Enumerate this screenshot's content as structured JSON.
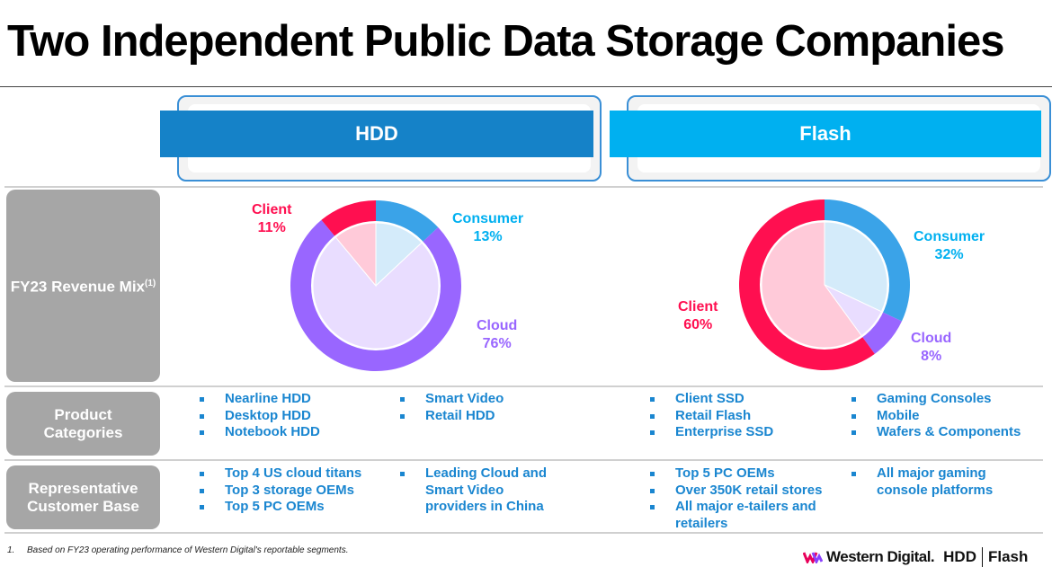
{
  "title": "Two Independent Public Data Storage Companies",
  "columns": [
    {
      "header": "HDD",
      "color": "#1582c8"
    },
    {
      "header": "Flash",
      "color": "#00b0f0"
    }
  ],
  "row_labels": {
    "revenue_mix": "FY23 Revenue Mix",
    "revenue_mix_sup": "(1)",
    "product_categories": "Product Categories",
    "customer_base": "Representative Customer Base"
  },
  "chart_data": [
    {
      "type": "pie",
      "title": "HDD",
      "slices": [
        {
          "name": "Consumer",
          "value": 13,
          "label": "13%",
          "color": "#3aa3e8",
          "text_color": "#00b0f0"
        },
        {
          "name": "Cloud",
          "value": 76,
          "label": "76%",
          "color": "#9966ff",
          "text_color": "#9966ff"
        },
        {
          "name": "Client",
          "value": 11,
          "label": "11%",
          "color": "#ff0f50",
          "text_color": "#ff0f50"
        }
      ]
    },
    {
      "type": "pie",
      "title": "Flash",
      "slices": [
        {
          "name": "Consumer",
          "value": 32,
          "label": "32%",
          "color": "#3aa3e8",
          "text_color": "#00b0f0"
        },
        {
          "name": "Cloud",
          "value": 8,
          "label": "8%",
          "color": "#9966ff",
          "text_color": "#9966ff"
        },
        {
          "name": "Client",
          "value": 60,
          "label": "60%",
          "color": "#ff0f50",
          "text_color": "#ff0f50"
        }
      ]
    }
  ],
  "hdd": {
    "products_col1": [
      "Nearline HDD",
      "Desktop HDD",
      "Notebook HDD"
    ],
    "products_col2": [
      "Smart Video",
      "Retail HDD"
    ],
    "customers_col1": [
      "Top 4 US cloud titans",
      "Top 3 storage OEMs",
      "Top 5 PC OEMs"
    ],
    "customers_col2": [
      "Leading Cloud and Smart Video providers in China"
    ]
  },
  "flash": {
    "products_col1": [
      "Client SSD",
      "Retail Flash",
      "Enterprise SSD"
    ],
    "products_col2": [
      "Gaming Consoles",
      "Mobile",
      "Wafers & Components"
    ],
    "customers_col1": [
      "Top 5 PC OEMs",
      "Over 350K retail stores",
      "All major e-tailers and retailers"
    ],
    "customers_col2": [
      "All major gaming console platforms"
    ]
  },
  "footnote": {
    "num": "1.",
    "text": "Based on FY23 operating performance of Western Digital's reportable segments."
  },
  "logo": {
    "brand": "Western Digital.",
    "hdd": "HDD",
    "flash": "Flash"
  }
}
